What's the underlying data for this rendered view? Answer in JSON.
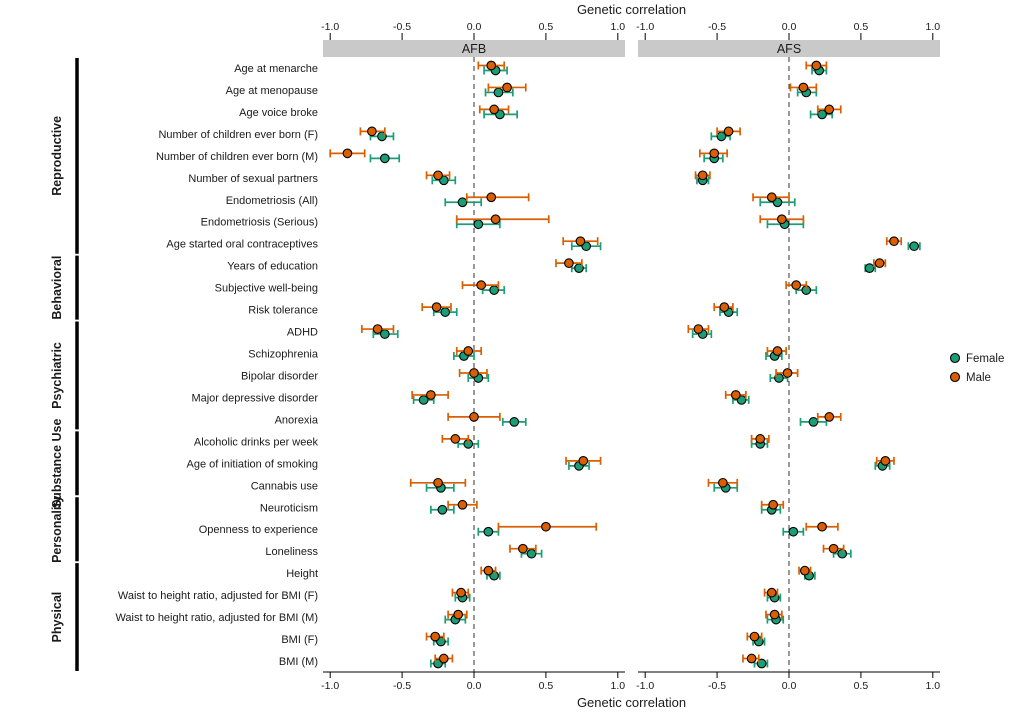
{
  "chart_data": {
    "type": "scatter",
    "subtype": "forest-dot-whisker",
    "title": "",
    "xlabel": "Genetic correlation",
    "ylabel": "",
    "xlim": [
      -1.05,
      1.05
    ],
    "xticks": [
      -1.0,
      -0.5,
      0.0,
      0.5,
      1.0
    ],
    "xtick_labels": [
      "-1.0",
      "-0.5",
      "0.0",
      "0.5",
      "1.0"
    ],
    "zero_line": 0,
    "grid": false,
    "panels": [
      {
        "key": "afb",
        "label": "AFB"
      },
      {
        "key": "afs",
        "label": "AFS"
      }
    ],
    "legend": {
      "position": "right",
      "entries": [
        {
          "key": "female",
          "label": "Female",
          "color": "#1B9E77"
        },
        {
          "key": "male",
          "label": "Male",
          "color": "#D95F02"
        }
      ]
    },
    "groups": [
      {
        "label": "Reproductive",
        "rows": [
          0,
          8
        ]
      },
      {
        "label": "Behavioral",
        "rows": [
          9,
          11
        ]
      },
      {
        "label": "Psychiatric",
        "rows": [
          12,
          16
        ]
      },
      {
        "label": "Substance Use",
        "rows": [
          17,
          19
        ]
      },
      {
        "label": "Personality",
        "rows": [
          20,
          22
        ]
      },
      {
        "label": "Physical",
        "rows": [
          23,
          27
        ]
      }
    ],
    "value_format": "[estimate, ci_low, ci_high]",
    "rows": [
      {
        "trait": "Age at menarche",
        "afb": {
          "female": [
            0.15,
            0.07,
            0.23
          ],
          "male": [
            0.12,
            0.03,
            0.21
          ]
        },
        "afs": {
          "female": [
            0.21,
            0.16,
            0.26
          ],
          "male": [
            0.19,
            0.12,
            0.26
          ]
        }
      },
      {
        "trait": "Age at menopause",
        "afb": {
          "female": [
            0.17,
            0.08,
            0.27
          ],
          "male": [
            0.23,
            0.1,
            0.36
          ]
        },
        "afs": {
          "female": [
            0.12,
            0.06,
            0.19
          ],
          "male": [
            0.1,
            0.01,
            0.19
          ]
        }
      },
      {
        "trait": "Age voice broke",
        "afb": {
          "female": [
            0.18,
            0.07,
            0.3
          ],
          "male": [
            0.14,
            0.04,
            0.24
          ]
        },
        "afs": {
          "female": [
            0.23,
            0.15,
            0.3
          ],
          "male": [
            0.28,
            0.2,
            0.36
          ]
        }
      },
      {
        "trait": "Number of children ever born (F)",
        "afb": {
          "female": [
            -0.64,
            -0.72,
            -0.56
          ],
          "male": [
            -0.71,
            -0.79,
            -0.62
          ]
        },
        "afs": {
          "female": [
            -0.47,
            -0.54,
            -0.41
          ],
          "male": [
            -0.42,
            -0.5,
            -0.34
          ]
        }
      },
      {
        "trait": "Number of children ever born (M)",
        "afb": {
          "female": [
            -0.62,
            -0.72,
            -0.52
          ],
          "male": [
            -0.88,
            -1.0,
            -0.76
          ]
        },
        "afs": {
          "female": [
            -0.52,
            -0.59,
            -0.46
          ],
          "male": [
            -0.52,
            -0.62,
            -0.43
          ]
        }
      },
      {
        "trait": "Number of sexual partners",
        "afb": {
          "female": [
            -0.21,
            -0.29,
            -0.13
          ],
          "male": [
            -0.25,
            -0.33,
            -0.17
          ]
        },
        "afs": {
          "female": [
            -0.6,
            -0.64,
            -0.56
          ],
          "male": [
            -0.6,
            -0.65,
            -0.55
          ]
        }
      },
      {
        "trait": "Endometriosis (All)",
        "afb": {
          "female": [
            -0.08,
            -0.2,
            0.05
          ],
          "male": [
            0.12,
            -0.05,
            0.38
          ]
        },
        "afs": {
          "female": [
            -0.08,
            -0.2,
            0.04
          ],
          "male": [
            -0.12,
            -0.25,
            0.0
          ]
        }
      },
      {
        "trait": "Endometriosis (Serious)",
        "afb": {
          "female": [
            0.03,
            -0.12,
            0.18
          ],
          "male": [
            0.15,
            -0.12,
            0.52
          ]
        },
        "afs": {
          "female": [
            -0.03,
            -0.15,
            0.1
          ],
          "male": [
            -0.05,
            -0.2,
            0.1
          ]
        }
      },
      {
        "trait": "Age started oral contraceptives",
        "afb": {
          "female": [
            0.78,
            0.68,
            0.88
          ],
          "male": [
            0.74,
            0.62,
            0.86
          ]
        },
        "afs": {
          "female": [
            0.87,
            0.83,
            0.91
          ],
          "male": [
            0.73,
            0.68,
            0.78
          ]
        }
      },
      {
        "trait": "Years of education",
        "afb": {
          "female": [
            0.73,
            0.68,
            0.78
          ],
          "male": [
            0.66,
            0.57,
            0.75
          ]
        },
        "afs": {
          "female": [
            0.56,
            0.53,
            0.6
          ],
          "male": [
            0.63,
            0.59,
            0.67
          ]
        }
      },
      {
        "trait": "Subjective well-being",
        "afb": {
          "female": [
            0.14,
            0.06,
            0.21
          ],
          "male": [
            0.05,
            -0.08,
            0.17
          ]
        },
        "afs": {
          "female": [
            0.12,
            0.05,
            0.19
          ],
          "male": [
            0.05,
            -0.02,
            0.12
          ]
        }
      },
      {
        "trait": "Risk tolerance",
        "afb": {
          "female": [
            -0.2,
            -0.28,
            -0.12
          ],
          "male": [
            -0.26,
            -0.36,
            -0.16
          ]
        },
        "afs": {
          "female": [
            -0.42,
            -0.48,
            -0.36
          ],
          "male": [
            -0.45,
            -0.52,
            -0.39
          ]
        }
      },
      {
        "trait": "ADHD",
        "afb": {
          "female": [
            -0.62,
            -0.7,
            -0.53
          ],
          "male": [
            -0.67,
            -0.78,
            -0.56
          ]
        },
        "afs": {
          "female": [
            -0.6,
            -0.67,
            -0.54
          ],
          "male": [
            -0.63,
            -0.7,
            -0.56
          ]
        }
      },
      {
        "trait": "Schizophrenia",
        "afb": {
          "female": [
            -0.07,
            -0.14,
            0.0
          ],
          "male": [
            -0.04,
            -0.12,
            0.05
          ]
        },
        "afs": {
          "female": [
            -0.1,
            -0.16,
            -0.05
          ],
          "male": [
            -0.08,
            -0.15,
            -0.02
          ]
        }
      },
      {
        "trait": "Bipolar disorder",
        "afb": {
          "female": [
            0.03,
            -0.04,
            0.1
          ],
          "male": [
            0.0,
            -0.1,
            0.09
          ]
        },
        "afs": {
          "female": [
            -0.07,
            -0.13,
            -0.01
          ],
          "male": [
            -0.01,
            -0.09,
            0.06
          ]
        }
      },
      {
        "trait": "Major depressive disorder",
        "afb": {
          "female": [
            -0.35,
            -0.42,
            -0.28
          ],
          "male": [
            -0.3,
            -0.43,
            -0.18
          ]
        },
        "afs": {
          "female": [
            -0.33,
            -0.39,
            -0.28
          ],
          "male": [
            -0.37,
            -0.44,
            -0.3
          ]
        }
      },
      {
        "trait": "Anorexia",
        "afb": {
          "female": [
            0.28,
            0.2,
            0.36
          ],
          "male": [
            0.0,
            -0.18,
            0.18
          ]
        },
        "afs": {
          "female": [
            0.17,
            0.08,
            0.26
          ],
          "male": [
            0.28,
            0.2,
            0.36
          ]
        }
      },
      {
        "trait": "Alcoholic drinks per week",
        "afb": {
          "female": [
            -0.04,
            -0.11,
            0.03
          ],
          "male": [
            -0.13,
            -0.22,
            -0.04
          ]
        },
        "afs": {
          "female": [
            -0.2,
            -0.26,
            -0.15
          ],
          "male": [
            -0.2,
            -0.26,
            -0.14
          ]
        }
      },
      {
        "trait": "Age of initiation of smoking",
        "afb": {
          "female": [
            0.73,
            0.66,
            0.8
          ],
          "male": [
            0.76,
            0.64,
            0.88
          ]
        },
        "afs": {
          "female": [
            0.65,
            0.6,
            0.7
          ],
          "male": [
            0.67,
            0.61,
            0.73
          ]
        }
      },
      {
        "trait": "Cannabis use",
        "afb": {
          "female": [
            -0.23,
            -0.33,
            -0.14
          ],
          "male": [
            -0.25,
            -0.44,
            -0.06
          ]
        },
        "afs": {
          "female": [
            -0.44,
            -0.52,
            -0.36
          ],
          "male": [
            -0.46,
            -0.56,
            -0.36
          ]
        }
      },
      {
        "trait": "Neuroticism",
        "afb": {
          "female": [
            -0.22,
            -0.3,
            -0.14
          ],
          "male": [
            -0.08,
            -0.18,
            0.02
          ]
        },
        "afs": {
          "female": [
            -0.12,
            -0.19,
            -0.06
          ],
          "male": [
            -0.11,
            -0.19,
            -0.04
          ]
        }
      },
      {
        "trait": "Openness to experience",
        "afb": {
          "female": [
            0.1,
            0.03,
            0.17
          ],
          "male": [
            0.5,
            0.17,
            0.85
          ]
        },
        "afs": {
          "female": [
            0.03,
            -0.04,
            0.1
          ],
          "male": [
            0.23,
            0.12,
            0.34
          ]
        }
      },
      {
        "trait": "Loneliness",
        "afb": {
          "female": [
            0.4,
            0.33,
            0.47
          ],
          "male": [
            0.34,
            0.25,
            0.43
          ]
        },
        "afs": {
          "female": [
            0.37,
            0.31,
            0.43
          ],
          "male": [
            0.31,
            0.24,
            0.38
          ]
        }
      },
      {
        "trait": "Height",
        "afb": {
          "female": [
            0.14,
            0.09,
            0.18
          ],
          "male": [
            0.1,
            0.05,
            0.15
          ]
        },
        "afs": {
          "female": [
            0.14,
            0.11,
            0.18
          ],
          "male": [
            0.11,
            0.07,
            0.15
          ]
        }
      },
      {
        "trait": "Waist to height ratio, adjusted for BMI (F)",
        "afb": {
          "female": [
            -0.08,
            -0.13,
            -0.03
          ],
          "male": [
            -0.09,
            -0.15,
            -0.04
          ]
        },
        "afs": {
          "female": [
            -0.1,
            -0.15,
            -0.06
          ],
          "male": [
            -0.12,
            -0.17,
            -0.08
          ]
        }
      },
      {
        "trait": "Waist to height ratio, adjusted for BMI (M)",
        "afb": {
          "female": [
            -0.13,
            -0.2,
            -0.06
          ],
          "male": [
            -0.11,
            -0.18,
            -0.05
          ]
        },
        "afs": {
          "female": [
            -0.09,
            -0.15,
            -0.04
          ],
          "male": [
            -0.1,
            -0.16,
            -0.05
          ]
        }
      },
      {
        "trait": "BMI (F)",
        "afb": {
          "female": [
            -0.23,
            -0.28,
            -0.18
          ],
          "male": [
            -0.27,
            -0.33,
            -0.21
          ]
        },
        "afs": {
          "female": [
            -0.21,
            -0.25,
            -0.17
          ],
          "male": [
            -0.24,
            -0.29,
            -0.19
          ]
        }
      },
      {
        "trait": "BMI (M)",
        "afb": {
          "female": [
            -0.25,
            -0.3,
            -0.2
          ],
          "male": [
            -0.21,
            -0.27,
            -0.15
          ]
        },
        "afs": {
          "female": [
            -0.19,
            -0.24,
            -0.15
          ],
          "male": [
            -0.26,
            -0.32,
            -0.21
          ]
        }
      }
    ],
    "colors": {
      "panel_header_bg": "#C9C9C9",
      "axis_text": "#1a1a1a",
      "zero_line": "#333333",
      "point_outline": "#000000"
    }
  }
}
